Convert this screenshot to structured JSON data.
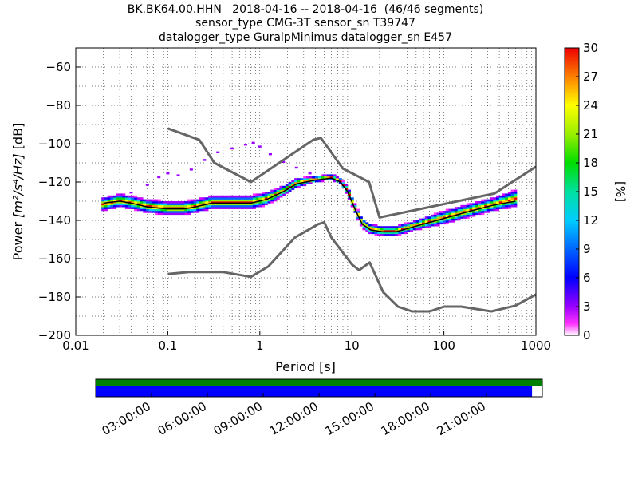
{
  "title_lines": [
    "BK.BK64.00.HHN   2018-04-16 -- 2018-04-16  (46/46 segments)",
    "sensor_type CMG-3T sensor_sn T39747",
    "datalogger_type GuralpMinimus datalogger_sn E457"
  ],
  "chart_data": {
    "type": "heatmap",
    "x_axis": {
      "label": "Period [s]",
      "scale": "log",
      "range": [
        0.01,
        1000
      ],
      "tick_labels": [
        "0.01",
        "0.1",
        "1",
        "10",
        "100",
        "1000"
      ]
    },
    "y_axis": {
      "label_prefix": "Power ",
      "label_math": "[m²/s⁴/Hz]",
      "label_suffix": " [dB]",
      "range": [
        -200,
        -50
      ],
      "ticks": [
        -60,
        -80,
        -100,
        -120,
        -140,
        -160,
        -180,
        -200
      ]
    },
    "colorbar": {
      "label": "[%]",
      "range": [
        0,
        30
      ],
      "ticks": [
        "0",
        "3",
        "6",
        "9",
        "12",
        "15",
        "18",
        "21",
        "24",
        "27",
        "30"
      ]
    },
    "grid": true,
    "noise_models": {
      "high": [
        [
          0.1,
          -92
        ],
        [
          0.22,
          -98
        ],
        [
          0.32,
          -110
        ],
        [
          0.8,
          -120
        ],
        [
          3.8,
          -98
        ],
        [
          4.6,
          -97
        ],
        [
          8,
          -113
        ],
        [
          15.4,
          -120
        ],
        [
          20,
          -138.5
        ],
        [
          354,
          -126
        ],
        [
          1000,
          -112
        ]
      ],
      "low": [
        [
          0.1,
          -168
        ],
        [
          0.17,
          -167
        ],
        [
          0.4,
          -167
        ],
        [
          0.8,
          -169.5
        ],
        [
          1.24,
          -164
        ],
        [
          2.4,
          -149
        ],
        [
          4.3,
          -142
        ],
        [
          5,
          -141
        ],
        [
          6,
          -149
        ],
        [
          10,
          -163
        ],
        [
          12,
          -166
        ],
        [
          15.6,
          -162
        ],
        [
          21.9,
          -177.5
        ],
        [
          31.6,
          -185
        ],
        [
          45,
          -187.5
        ],
        [
          70,
          -187.5
        ],
        [
          101,
          -185
        ],
        [
          154,
          -185
        ],
        [
          328,
          -187.5
        ],
        [
          600,
          -184.5
        ],
        [
          1000,
          -178.7
        ]
      ]
    },
    "mode_line": [
      [
        0.02,
        -131
      ],
      [
        0.03,
        -130
      ],
      [
        0.04,
        -131
      ],
      [
        0.06,
        -133
      ],
      [
        0.1,
        -134
      ],
      [
        0.15,
        -134
      ],
      [
        0.2,
        -133
      ],
      [
        0.3,
        -131
      ],
      [
        0.5,
        -131
      ],
      [
        0.8,
        -131
      ],
      [
        1.2,
        -129
      ],
      [
        1.8,
        -125
      ],
      [
        2.5,
        -121
      ],
      [
        4,
        -119
      ],
      [
        6,
        -118
      ],
      [
        7.5,
        -120
      ],
      [
        9,
        -125
      ],
      [
        11,
        -135
      ],
      [
        13,
        -142
      ],
      [
        16,
        -145
      ],
      [
        22,
        -146
      ],
      [
        30,
        -146
      ],
      [
        50,
        -143
      ],
      [
        100,
        -139
      ],
      [
        200,
        -135
      ],
      [
        350,
        -132
      ],
      [
        600,
        -130
      ]
    ],
    "distribution": [
      [
        0.02,
        -132,
        3
      ],
      [
        0.03,
        -130,
        3
      ],
      [
        0.04,
        -131,
        3
      ],
      [
        0.06,
        -133,
        3
      ],
      [
        0.1,
        -134,
        3
      ],
      [
        0.15,
        -134,
        3
      ],
      [
        0.2,
        -133,
        3
      ],
      [
        0.3,
        -131,
        3
      ],
      [
        0.5,
        -131,
        3
      ],
      [
        0.8,
        -131,
        3
      ],
      [
        1.2,
        -129,
        3
      ],
      [
        1.8,
        -125,
        2
      ],
      [
        2.5,
        -121,
        2
      ],
      [
        4,
        -119,
        1
      ],
      [
        6,
        -118,
        1
      ],
      [
        7.5,
        -120,
        1
      ],
      [
        9,
        -125,
        2
      ],
      [
        11,
        -135,
        2
      ],
      [
        13,
        -142,
        2
      ],
      [
        16,
        -145,
        2
      ],
      [
        22,
        -146,
        2
      ],
      [
        30,
        -146,
        2
      ],
      [
        50,
        -143,
        2
      ],
      [
        100,
        -139,
        3
      ],
      [
        200,
        -135,
        3
      ],
      [
        350,
        -132,
        3
      ],
      [
        600,
        -129,
        4
      ]
    ],
    "outlier_track": [
      [
        0.04,
        -126
      ],
      [
        0.06,
        -122
      ],
      [
        0.08,
        -118
      ],
      [
        0.1,
        -116
      ],
      [
        0.13,
        -117
      ],
      [
        0.18,
        -114
      ],
      [
        0.25,
        -109
      ],
      [
        0.35,
        -105
      ],
      [
        0.5,
        -103
      ],
      [
        0.7,
        -101
      ],
      [
        0.85,
        -100
      ],
      [
        1.0,
        -102
      ],
      [
        1.3,
        -106
      ],
      [
        1.8,
        -110
      ],
      [
        2.5,
        -113
      ],
      [
        3.5,
        -116
      ],
      [
        5,
        -117
      ],
      [
        6.5,
        -117
      ]
    ]
  },
  "timeline": {
    "tick_labels": [
      "03:00:00",
      "06:00:00",
      "09:00:00",
      "12:00:00",
      "15:00:00",
      "18:00:00",
      "21:00:00"
    ],
    "colors": {
      "top": "#008000",
      "bottom": "#0000ff"
    },
    "coverage_fraction": 0.977
  }
}
